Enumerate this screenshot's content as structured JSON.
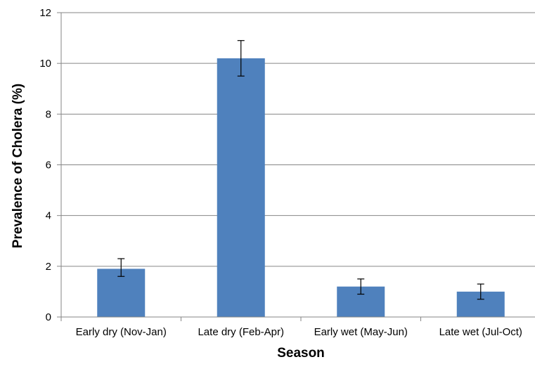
{
  "chart_data": {
    "type": "bar",
    "title": "",
    "xlabel": "Season",
    "ylabel": "Prevalence of Cholera (%)",
    "categories": [
      "Early dry (Nov-Jan)",
      "Late dry (Feb-Apr)",
      "Early wet (May-Jun)",
      "Late wet (Jul-Oct)"
    ],
    "values": [
      1.9,
      10.2,
      1.2,
      1.0
    ],
    "error_low": [
      1.6,
      9.5,
      0.9,
      0.7
    ],
    "error_high": [
      2.3,
      10.9,
      1.5,
      1.3
    ],
    "ylim": [
      0,
      12
    ],
    "yticks": [
      "0",
      "2",
      "4",
      "6",
      "8",
      "10",
      "12"
    ],
    "grid": true,
    "bar_color": "#4f81bd",
    "grid_color": "#868686"
  }
}
